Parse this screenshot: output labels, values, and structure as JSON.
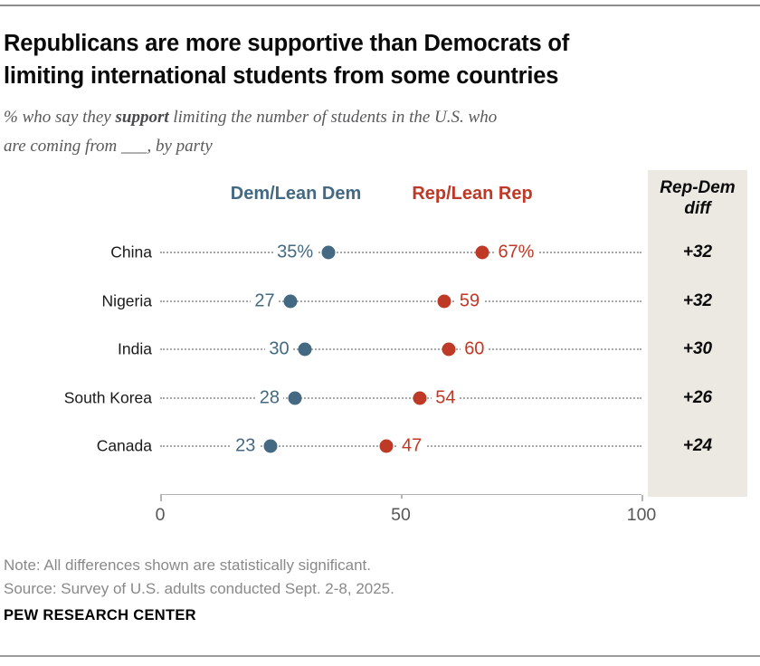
{
  "header": {
    "title_lines": [
      "Republicans are more supportive than Democrats of",
      "limiting international students from some countries"
    ],
    "subtitle": {
      "pre": "% who say they ",
      "bold": "support",
      "post": " limiting the number of students in the U.S. who",
      "line2": "are coming from ___, by party"
    }
  },
  "legend": {
    "dem_label": "Dem/Lean Dem",
    "rep_label": "Rep/Lean Rep"
  },
  "diff_panel": {
    "header_line1": "Rep-Dem",
    "header_line2": "diff",
    "background": "#ece9e3"
  },
  "colors": {
    "dem": "#436983",
    "rep": "#bf3927",
    "leader_dots": "#a8a8a8",
    "axis": "#b4b4b4"
  },
  "chart_data": {
    "type": "scatter",
    "subtype": "dumbbell-dot-plot",
    "title": "Republicans are more supportive than Democrats of limiting international students from some countries",
    "subtitle": "% who say they support limiting the number of students in the U.S. who are coming from ___, by party",
    "categories": [
      "China",
      "Nigeria",
      "India",
      "South Korea",
      "Canada"
    ],
    "series": [
      {
        "name": "Dem/Lean Dem",
        "color": "#436983",
        "values": [
          35,
          27,
          30,
          28,
          23
        ],
        "display_labels": [
          "35%",
          "27",
          "30",
          "28",
          "23"
        ]
      },
      {
        "name": "Rep/Lean Rep",
        "color": "#bf3927",
        "values": [
          67,
          59,
          60,
          54,
          47
        ],
        "display_labels": [
          "67%",
          "59",
          "60",
          "54",
          "47"
        ]
      }
    ],
    "diff": {
      "label": "Rep-Dem diff",
      "values": [
        "+32",
        "+32",
        "+30",
        "+26",
        "+24"
      ]
    },
    "xlabel": "",
    "ylabel": "",
    "xlim": [
      0,
      100
    ],
    "x_ticks": [
      "0",
      "50",
      "100"
    ],
    "grid": false,
    "legend_position": "top"
  },
  "footer": {
    "note": "Note: All differences shown are statistically significant.",
    "source": "Source: Survey of U.S. adults conducted Sept. 2-8, 2025.",
    "brand": "PEW RESEARCH CENTER"
  }
}
